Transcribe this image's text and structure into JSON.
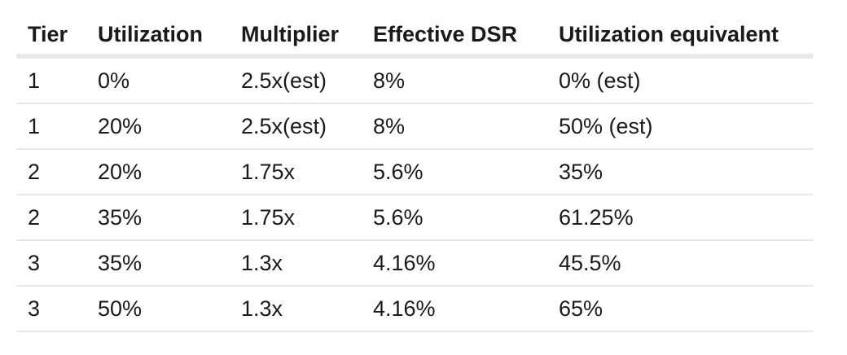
{
  "table": {
    "headers": [
      "Tier",
      "Utilization",
      "Multiplier",
      "Effective DSR",
      "Utilization equivalent"
    ],
    "rows": [
      [
        "1",
        "0%",
        "2.5x(est)",
        "8%",
        "0% (est)"
      ],
      [
        "1",
        "20%",
        "2.5x(est)",
        "8%",
        "50% (est)"
      ],
      [
        "2",
        "20%",
        "1.75x",
        "5.6%",
        "35%"
      ],
      [
        "2",
        "35%",
        "1.75x",
        "5.6%",
        "61.25%"
      ],
      [
        "3",
        "35%",
        "1.3x",
        "4.16%",
        "45.5%"
      ],
      [
        "3",
        "50%",
        "1.3x",
        "4.16%",
        "65%"
      ]
    ]
  }
}
